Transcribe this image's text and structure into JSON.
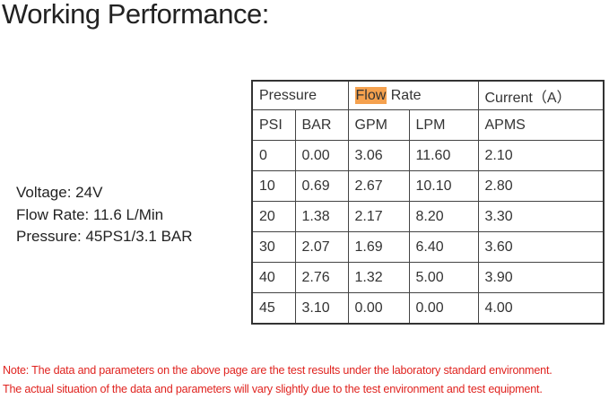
{
  "title": "Working Performance:",
  "specs": [
    "Voltage: 24V",
    "Flow Rate: 11.6 L/Min",
    "Pressure: 45PS1/3.1 BAR"
  ],
  "table": {
    "groups": [
      "Pressure",
      "Flow",
      "Rate",
      "Current（A）"
    ],
    "columns": [
      "PSI",
      "BAR",
      "GPM",
      "LPM",
      "APMS"
    ],
    "rows": [
      [
        "0",
        "0.00",
        "3.06",
        "11.60",
        "2.10"
      ],
      [
        "10",
        "0.69",
        "2.67",
        "10.10",
        "2.80"
      ],
      [
        "20",
        "1.38",
        "2.17",
        "8.20",
        "3.30"
      ],
      [
        "30",
        "2.07",
        "1.69",
        "6.40",
        "3.60"
      ],
      [
        "40",
        "2.76",
        "1.32",
        "5.00",
        "3.90"
      ],
      [
        "45",
        "3.10",
        "0.00",
        "0.00",
        "4.00"
      ]
    ]
  },
  "notes": [
    "Note: The data and parameters on the above page are the test results under the laboratory standard environment.",
    "The actual situation of the data and parameters will vary slightly due to the test environment and test equipment."
  ]
}
